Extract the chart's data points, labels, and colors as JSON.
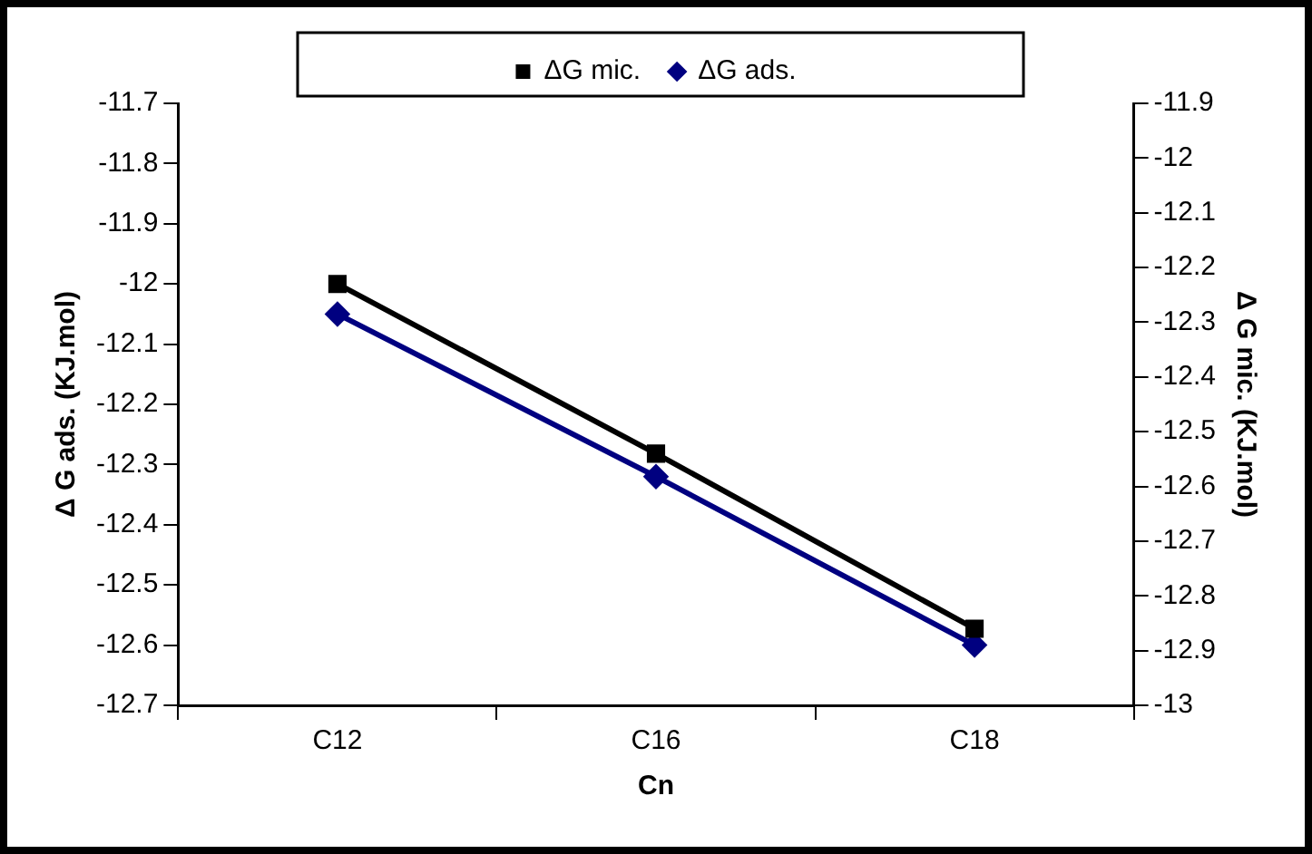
{
  "chart_data": {
    "type": "line",
    "xlabel": "Cn",
    "ylabel": "Δ G ads. (KJ.mol)",
    "y2label": "Δ G mic. (KJ.mol)",
    "categories": [
      "C12",
      "C16",
      "C18"
    ],
    "series": [
      {
        "name": "ΔG mic.",
        "color": "#000000",
        "axis": "y2",
        "marker": "square",
        "values": [
          -12.23,
          -12.54,
          -12.86
        ]
      },
      {
        "name": "ΔG ads.",
        "color": "#000080",
        "marker": "diamond",
        "values": [
          -12.05,
          -12.32,
          -12.6
        ]
      }
    ],
    "ylim": [
      -12.7,
      -11.7
    ],
    "yticks": [
      -12.7,
      -12.6,
      -12.5,
      -12.4,
      -12.3,
      -12.2,
      -12.1,
      -12,
      -11.9,
      -11.8,
      -11.7
    ],
    "y2lim": [
      -13,
      -11.9
    ],
    "y2ticks": [
      -13,
      -12.9,
      -12.8,
      -12.7,
      -12.6,
      -12.5,
      -12.4,
      -12.3,
      -12.2,
      -12.1,
      -12,
      -11.9
    ],
    "grid": false,
    "legend": "top",
    "line_style": "solid"
  }
}
